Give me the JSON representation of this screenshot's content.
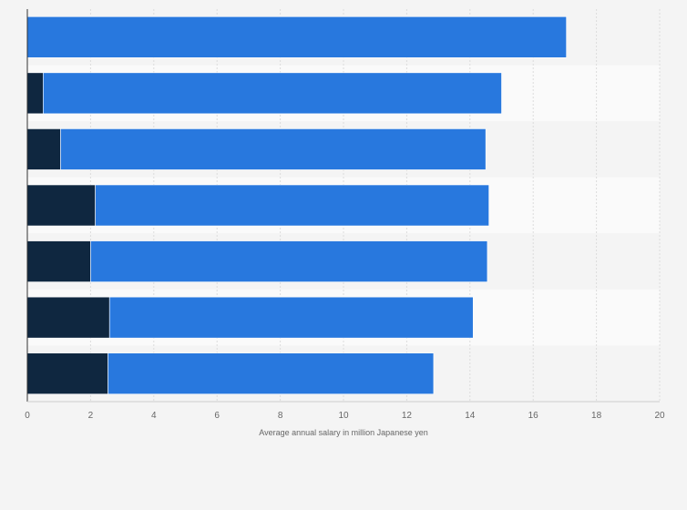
{
  "chart_data": {
    "type": "bar",
    "orientation": "horizontal",
    "stacked": true,
    "categories": [
      "",
      "",
      "",
      "",
      "",
      "",
      ""
    ],
    "series": [
      {
        "color": "#0f2740",
        "values": [
          0,
          0.5,
          1.05,
          2.15,
          2.0,
          2.6,
          2.55
        ]
      },
      {
        "color": "#2878de",
        "values": [
          17.05,
          14.5,
          13.45,
          12.45,
          12.55,
          11.5,
          10.3
        ]
      }
    ],
    "title": "",
    "xlabel": "Average annual salary in million Japanese yen",
    "ylabel": "",
    "xlim": [
      0,
      20
    ],
    "xticks": [
      0,
      2,
      4,
      6,
      8,
      10,
      12,
      14,
      16,
      18,
      20
    ],
    "grid": true,
    "legend": "none"
  }
}
